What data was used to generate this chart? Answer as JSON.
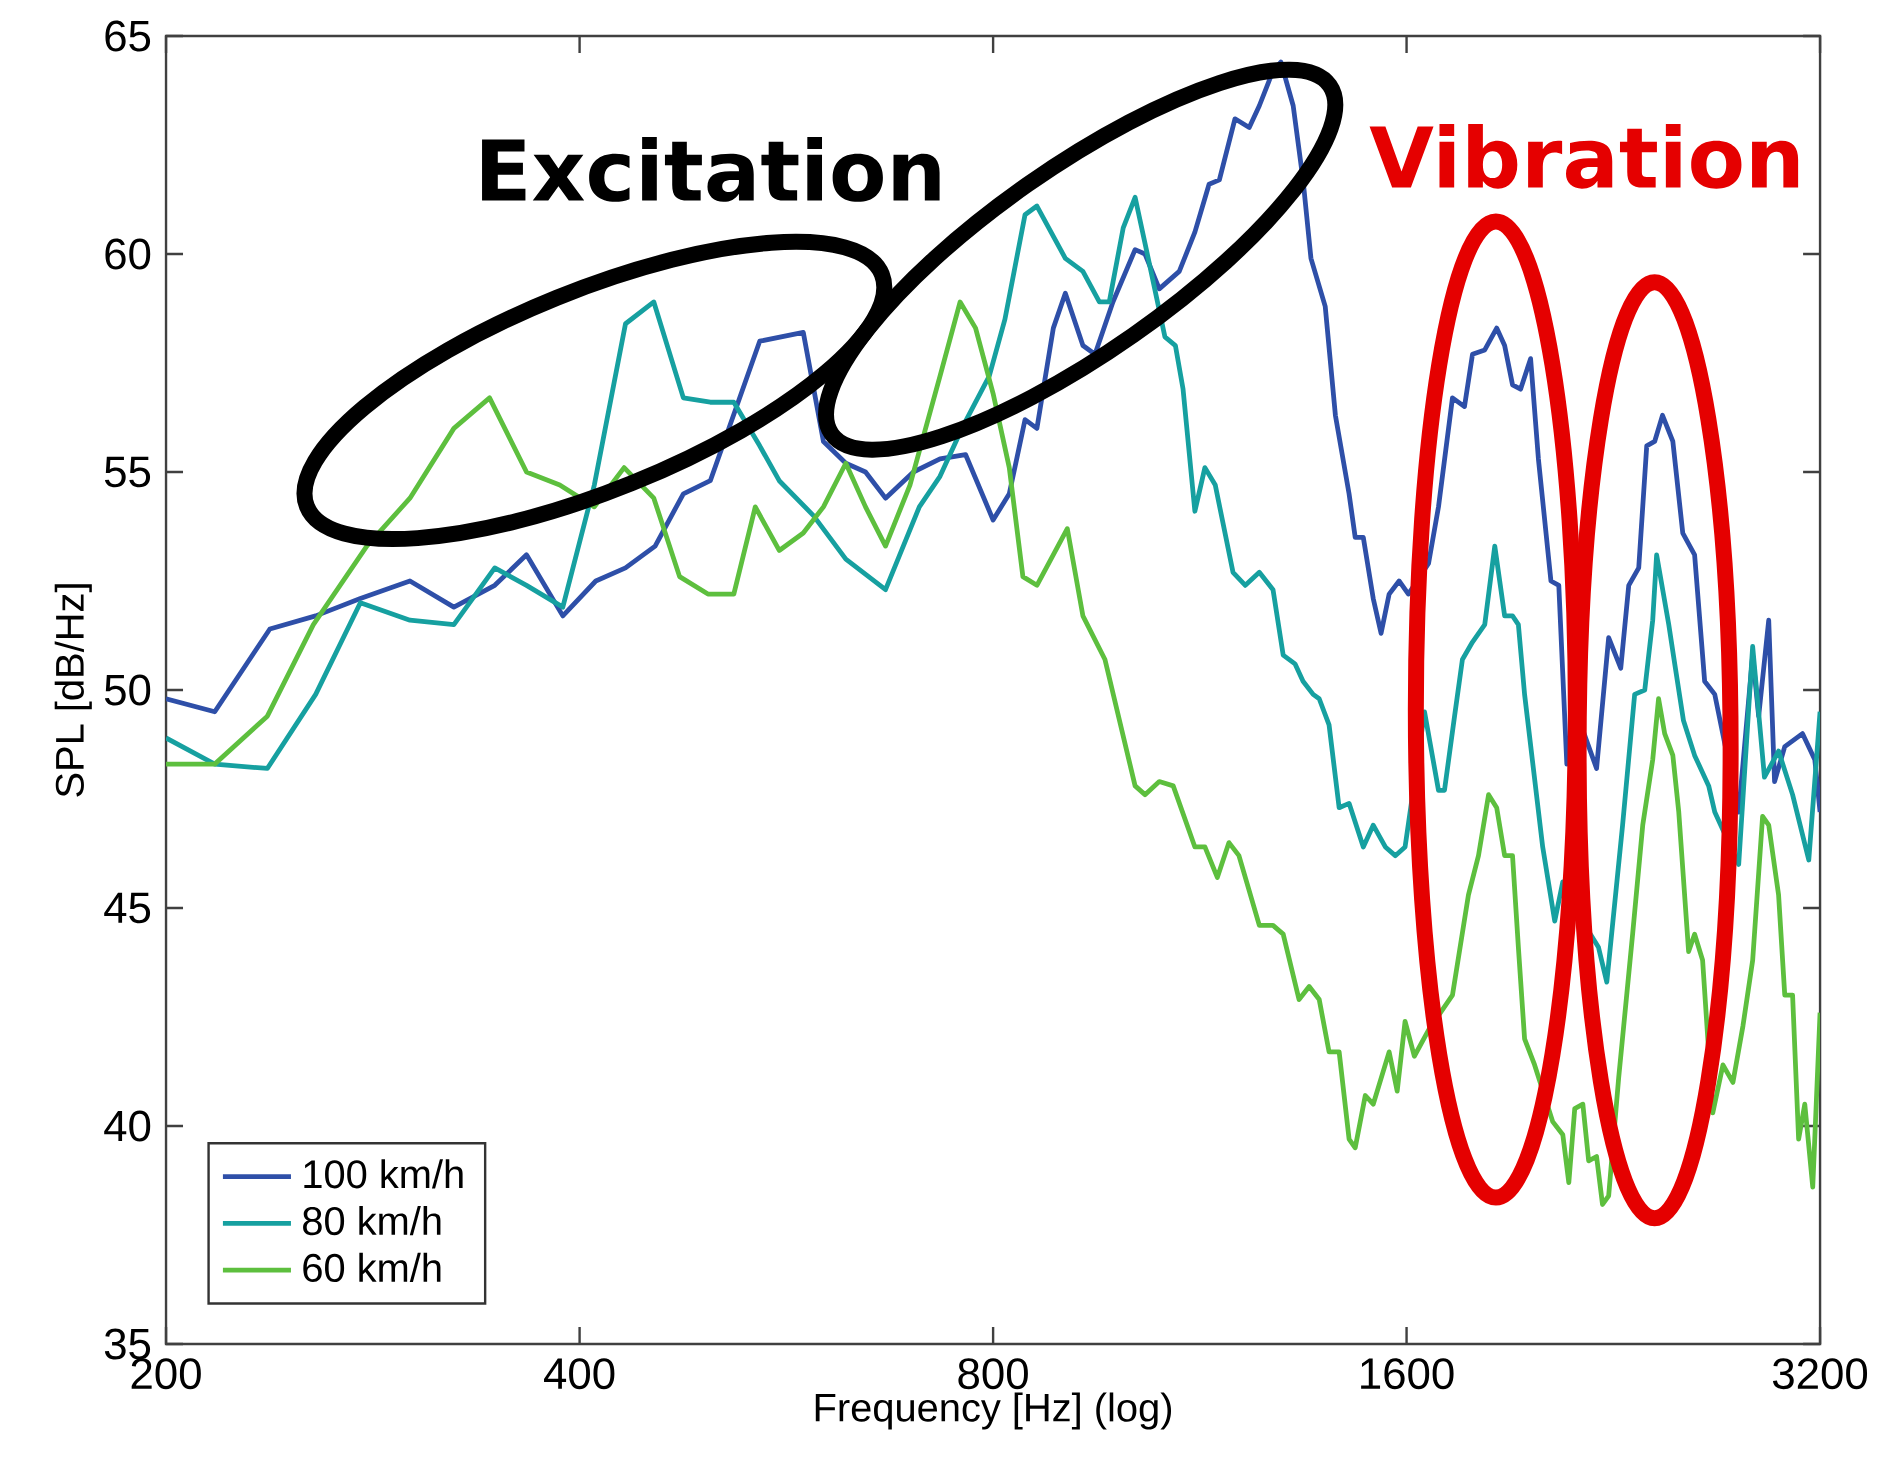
{
  "chart_data": {
    "type": "line",
    "xlabel": "Frequency [Hz] (log)",
    "ylabel": "SPL [dB/Hz]",
    "log": "x",
    "xlim": [
      200,
      3200
    ],
    "ylim": [
      35,
      65
    ],
    "xticks": [
      200,
      400,
      800,
      1600,
      3200
    ],
    "yticks": [
      35,
      40,
      45,
      50,
      55,
      60,
      65
    ],
    "grid": false,
    "legend": "bottom left",
    "annotations": [
      "Excitation",
      "Vibration"
    ],
    "series": [
      {
        "name": "100 km/h",
        "color": "#2e4fa8",
        "x": [
          200,
          217,
          238,
          257,
          277,
          301,
          324,
          347,
          366,
          389,
          411,
          432,
          454,
          476,
          498,
          541,
          582,
          602,
          625,
          646,
          668,
          700,
          732,
          764,
          800,
          822,
          844,
          861,
          885,
          903,
          930,
          949,
          978,
          1015,
          1032,
          1057,
          1093,
          1122,
          1149,
          1169,
          1200,
          1229,
          1250,
          1279,
          1296,
          1323,
          1345,
          1363,
          1396,
          1420,
          1453,
          1468,
          1488,
          1513,
          1533,
          1554,
          1580,
          1605,
          1660,
          1688,
          1728,
          1763,
          1787,
          1824,
          1861,
          1886,
          1911,
          1937,
          1970,
          1996,
          2038,
          2065,
          2093,
          2121,
          2200,
          2245,
          2291,
          2322,
          2361,
          2393,
          2425,
          2457,
          2500,
          2542,
          2593,
          2637,
          2682,
          2792,
          2858,
          2887,
          2936,
          2965,
          3016,
          3107,
          3172,
          3200
        ],
        "values": [
          49.8,
          49.5,
          51.4,
          51.7,
          52.1,
          52.5,
          51.9,
          52.4,
          53.1,
          51.7,
          52.5,
          52.8,
          53.3,
          54.5,
          54.8,
          58.0,
          58.2,
          55.7,
          55.2,
          55.0,
          54.4,
          55.0,
          55.3,
          55.4,
          53.9,
          54.5,
          56.2,
          56.0,
          58.3,
          59.1,
          57.9,
          57.7,
          58.9,
          60.1,
          60.0,
          59.2,
          59.6,
          60.5,
          61.6,
          61.7,
          63.1,
          62.9,
          63.4,
          64.2,
          64.4,
          63.4,
          61.7,
          59.9,
          58.8,
          56.3,
          54.5,
          53.5,
          53.5,
          52.1,
          51.3,
          52.2,
          52.5,
          52.2,
          52.9,
          54.2,
          56.7,
          56.5,
          57.7,
          57.8,
          58.3,
          57.9,
          57.0,
          56.9,
          57.6,
          55.3,
          52.5,
          52.4,
          48.3,
          49.6,
          48.2,
          51.2,
          50.5,
          52.4,
          52.8,
          55.6,
          55.7,
          56.3,
          55.7,
          53.6,
          53.1,
          50.2,
          49.9,
          47.2,
          50.8,
          49.4,
          51.6,
          47.9,
          48.7,
          49.0,
          48.4,
          47.2
        ]
      },
      {
        "name": "80 km/h",
        "color": "#16a0a0",
        "x": [
          200,
          217,
          237,
          257,
          277,
          301,
          324,
          347,
          366,
          389,
          410,
          432,
          453,
          476,
          498,
          518,
          541,
          559,
          592,
          625,
          668,
          707,
          732,
          762,
          795,
          816,
          844,
          861,
          903,
          930,
          956,
          972,
          995,
          1015,
          1036,
          1067,
          1086,
          1100,
          1122,
          1141,
          1161,
          1196,
          1221,
          1250,
          1279,
          1301,
          1327,
          1345,
          1368,
          1382,
          1405,
          1429,
          1453,
          1488,
          1513,
          1544,
          1570,
          1596,
          1649,
          1688,
          1705,
          1734,
          1757,
          1787,
          1824,
          1855,
          1886,
          1911,
          1930,
          1950,
          2010,
          2051,
          2079,
          2100,
          2207,
          2238,
          2298,
          2345,
          2385,
          2417,
          2433,
          2483,
          2508,
          2545,
          2593,
          2655,
          2682,
          2792,
          2858,
          2915,
          2985,
          3056,
          3140,
          3200
        ],
        "values": [
          48.9,
          48.3,
          48.2,
          49.9,
          52.0,
          51.6,
          51.5,
          52.8,
          52.4,
          51.9,
          54.7,
          58.4,
          58.9,
          56.7,
          56.6,
          56.6,
          55.6,
          54.8,
          54.0,
          53.0,
          52.3,
          54.2,
          54.9,
          56.1,
          57.2,
          58.5,
          60.9,
          61.1,
          59.9,
          59.6,
          58.9,
          58.9,
          60.6,
          61.3,
          60.0,
          58.1,
          57.9,
          56.9,
          54.1,
          55.1,
          54.7,
          52.7,
          52.4,
          52.7,
          52.3,
          50.8,
          50.6,
          50.2,
          49.9,
          49.8,
          49.2,
          47.3,
          47.4,
          46.4,
          46.9,
          46.4,
          46.2,
          46.4,
          49.5,
          47.7,
          47.7,
          49.4,
          50.7,
          51.1,
          51.5,
          53.3,
          51.7,
          51.7,
          51.5,
          49.9,
          46.4,
          44.7,
          45.6,
          45.2,
          44.1,
          43.3,
          46.9,
          49.9,
          50.0,
          51.6,
          53.1,
          51.5,
          50.6,
          49.3,
          48.5,
          47.8,
          47.2,
          46.0,
          51.0,
          48.0,
          48.6,
          47.6,
          46.1,
          49.5
        ]
      },
      {
        "name": "60 km/h",
        "color": "#5dbf3e",
        "x": [
          200,
          217,
          237,
          256,
          280,
          301,
          324,
          344,
          366,
          387,
          410,
          431,
          453,
          473,
          496,
          518,
          537,
          559,
          582,
          602,
          625,
          646,
          668,
          696,
          732,
          757,
          777,
          800,
          822,
          841,
          861,
          906,
          930,
          965,
          1015,
          1032,
          1057,
          1082,
          1122,
          1141,
          1165,
          1188,
          1208,
          1250,
          1279,
          1301,
          1336,
          1359,
          1382,
          1405,
          1429,
          1453,
          1468,
          1493,
          1513,
          1554,
          1575,
          1596,
          1621,
          1660,
          1728,
          1775,
          1805,
          1836,
          1861,
          1886,
          1911,
          1930,
          1950,
          1983,
          2044,
          2079,
          2100,
          2121,
          2150,
          2171,
          2200,
          2222,
          2245,
          2283,
          2337,
          2377,
          2417,
          2441,
          2466,
          2500,
          2525,
          2567,
          2593,
          2628,
          2673,
          2719,
          2765,
          2812,
          2858,
          2906,
          2936,
          2985,
          3016,
          3056,
          3087,
          3119,
          3161,
          3200
        ],
        "values": [
          48.3,
          48.3,
          49.4,
          51.5,
          53.3,
          54.4,
          56.0,
          56.7,
          55.0,
          54.7,
          54.2,
          55.1,
          54.4,
          52.6,
          52.2,
          52.2,
          54.2,
          53.2,
          53.6,
          54.2,
          55.2,
          54.2,
          53.3,
          54.7,
          57.2,
          58.9,
          58.3,
          56.8,
          55.1,
          52.6,
          52.4,
          53.7,
          51.7,
          50.7,
          47.8,
          47.6,
          47.9,
          47.8,
          46.4,
          46.4,
          45.7,
          46.5,
          46.2,
          44.6,
          44.6,
          44.4,
          42.9,
          43.2,
          42.9,
          41.7,
          41.7,
          39.7,
          39.5,
          40.7,
          40.5,
          41.7,
          40.8,
          42.4,
          41.6,
          42.2,
          43.0,
          45.3,
          46.2,
          47.6,
          47.3,
          46.2,
          46.2,
          44.1,
          42.0,
          41.4,
          40.1,
          39.8,
          38.7,
          40.4,
          40.5,
          39.2,
          39.3,
          38.2,
          38.4,
          41.1,
          44.4,
          46.9,
          48.4,
          49.8,
          49.0,
          48.5,
          47.2,
          44.0,
          44.4,
          43.8,
          40.3,
          41.4,
          41.0,
          42.3,
          43.8,
          47.1,
          46.9,
          45.3,
          43.0,
          43.0,
          39.7,
          40.5,
          38.6,
          42.6
        ]
      }
    ]
  }
}
